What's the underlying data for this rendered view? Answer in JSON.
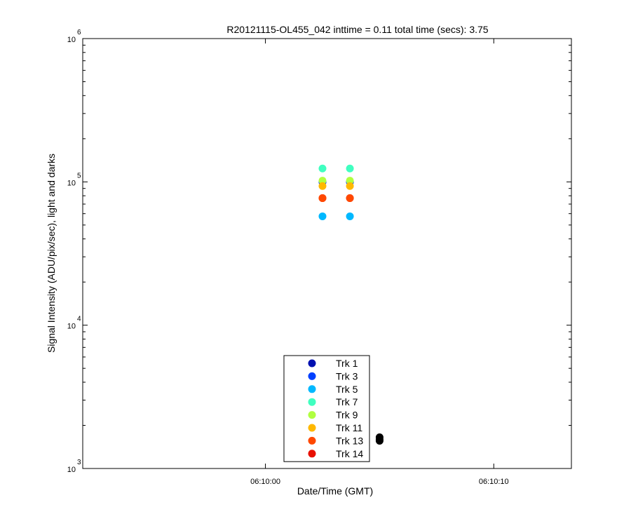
{
  "chart_data": {
    "type": "scatter",
    "title": "R20121115-OL455_042 inttime = 0.11 total time (secs): 3.75",
    "xlabel": "Date/Time (GMT)",
    "ylabel": "Signal Intensity (ADU/pix/sec), light and darks",
    "xlim": [
      22192,
      22213.4
    ],
    "xticks": [
      {
        "value": 22200,
        "label": "06:10:00"
      },
      {
        "value": 22210,
        "label": "06:10:10"
      }
    ],
    "ylim": [
      1000,
      1000000
    ],
    "yscale": "log",
    "yticks": [
      {
        "value": 1000,
        "label": "10",
        "exponent": "3"
      },
      {
        "value": 10000,
        "label": "10",
        "exponent": "4"
      },
      {
        "value": 100000,
        "label": "10",
        "exponent": "5"
      },
      {
        "value": 1000000,
        "label": "10",
        "exponent": "6"
      }
    ],
    "yminorticks": [
      2000,
      3000,
      4000,
      5000,
      6000,
      7000,
      8000,
      9000,
      20000,
      30000,
      40000,
      50000,
      60000,
      70000,
      80000,
      90000,
      200000,
      300000,
      400000,
      500000,
      600000,
      700000,
      800000,
      900000
    ],
    "grid": false,
    "legend": "bottom-center",
    "series": [
      {
        "name": "Trk 1",
        "color": "#0010b0",
        "x": [
          22202.5,
          22203.7
        ],
        "values": [
          100000,
          100000
        ]
      },
      {
        "name": "Trk 3",
        "color": "#0040ff",
        "x": [
          22202.5,
          22203.7
        ],
        "values": [
          100000,
          100000
        ]
      },
      {
        "name": "Trk 5",
        "color": "#00b8ff",
        "x": [
          22202.5,
          22203.7
        ],
        "values": [
          57500,
          57500
        ]
      },
      {
        "name": "Trk 7",
        "color": "#40ffc0",
        "x": [
          22202.5,
          22203.7
        ],
        "values": [
          124000,
          124000
        ]
      },
      {
        "name": "Trk 9",
        "color": "#b0ff40",
        "x": [
          22202.5,
          22203.7
        ],
        "values": [
          102000,
          102000
        ]
      },
      {
        "name": "Trk 11",
        "color": "#ffb800",
        "x": [
          22202.5,
          22203.7
        ],
        "values": [
          93500,
          93500
        ]
      },
      {
        "name": "Trk 14",
        "color": "#e81000",
        "x": [
          22202.5,
          22203.7
        ],
        "values": [
          77000,
          77000
        ]
      },
      {
        "name": "Trk 13",
        "color": "#ff4800",
        "x": [
          22202.5,
          22203.7
        ],
        "values": [
          77000,
          77000
        ]
      },
      {
        "color": "#000000",
        "x": [
          22205.0,
          22205.0,
          22205.0
        ],
        "values": [
          1650,
          1600,
          1560
        ]
      }
    ]
  }
}
